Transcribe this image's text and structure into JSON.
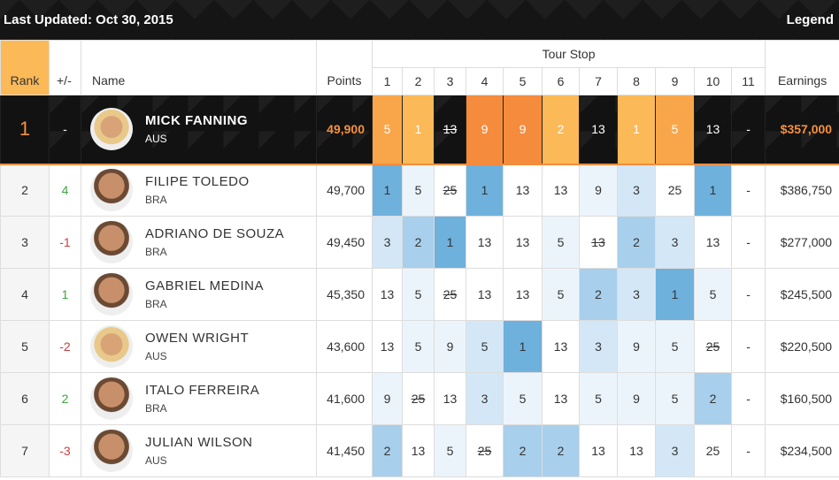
{
  "header": {
    "updated": "Last Updated: Oct 30, 2015",
    "legend": "Legend"
  },
  "columns": {
    "rank": "Rank",
    "pm": "+/-",
    "name": "Name",
    "points": "Points",
    "tour_stop": "Tour Stop",
    "earnings": "Earnings",
    "stops": [
      "1",
      "2",
      "3",
      "4",
      "5",
      "6",
      "7",
      "8",
      "9",
      "10",
      "11"
    ]
  },
  "rows": [
    {
      "rank": "1",
      "pm": "-",
      "name": "MICK FANNING",
      "country": "AUS",
      "points": "49,900",
      "stops": [
        "5",
        "1",
        "13",
        "9",
        "9",
        "2",
        "13",
        "1",
        "5",
        "13",
        "-"
      ],
      "earnings": "$357,000"
    },
    {
      "rank": "2",
      "pm": "4",
      "name": "FILIPE TOLEDO",
      "country": "BRA",
      "points": "49,700",
      "stops": [
        "1",
        "5",
        "25",
        "1",
        "13",
        "13",
        "9",
        "3",
        "25",
        "1",
        "-"
      ],
      "earnings": "$386,750"
    },
    {
      "rank": "3",
      "pm": "-1",
      "name": "ADRIANO DE SOUZA",
      "country": "BRA",
      "points": "49,450",
      "stops": [
        "3",
        "2",
        "1",
        "13",
        "13",
        "5",
        "13",
        "2",
        "3",
        "13",
        "-"
      ],
      "earnings": "$277,000"
    },
    {
      "rank": "4",
      "pm": "1",
      "name": "GABRIEL MEDINA",
      "country": "BRA",
      "points": "45,350",
      "stops": [
        "13",
        "5",
        "25",
        "13",
        "13",
        "5",
        "2",
        "3",
        "1",
        "5",
        "-"
      ],
      "earnings": "$245,500"
    },
    {
      "rank": "5",
      "pm": "-2",
      "name": "OWEN WRIGHT",
      "country": "AUS",
      "points": "43,600",
      "stops": [
        "13",
        "5",
        "9",
        "5",
        "1",
        "13",
        "3",
        "9",
        "5",
        "25",
        "-"
      ],
      "earnings": "$220,500"
    },
    {
      "rank": "6",
      "pm": "2",
      "name": "ITALO FERREIRA",
      "country": "BRA",
      "points": "41,600",
      "stops": [
        "9",
        "25",
        "13",
        "3",
        "5",
        "13",
        "5",
        "9",
        "5",
        "2",
        "-"
      ],
      "earnings": "$160,500"
    },
    {
      "rank": "7",
      "pm": "-3",
      "name": "JULIAN WILSON",
      "country": "AUS",
      "points": "41,450",
      "stops": [
        "2",
        "13",
        "5",
        "25",
        "2",
        "2",
        "13",
        "13",
        "3",
        "25",
        "-"
      ],
      "earnings": "$234,500"
    }
  ],
  "colors": {
    "accent": "#f58c3d",
    "header_rank": "#fbb957",
    "positive": "#3fa53f",
    "negative": "#d23b3b",
    "highlight_blue": "#6eb1dd"
  }
}
